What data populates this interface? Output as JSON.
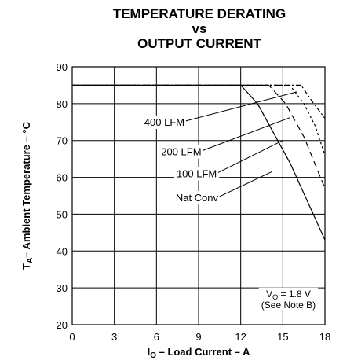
{
  "chart_data": {
    "type": "line",
    "title_lines": [
      "TEMPERATURE DERATING",
      "vs",
      "OUTPUT CURRENT"
    ],
    "xlabel_main": "I",
    "xlabel_sub": "O",
    "xlabel_rest": " – Load Current – A",
    "ylabel_main": "T",
    "ylabel_sub": "A",
    "ylabel_rest": "– Ambient Temperature – °C",
    "xlim": [
      0,
      18
    ],
    "ylim": [
      20,
      90
    ],
    "xticks": [
      0,
      3,
      6,
      9,
      12,
      15,
      18
    ],
    "yticks": [
      20,
      30,
      40,
      50,
      60,
      70,
      80,
      90
    ],
    "grid": true,
    "series": [
      {
        "name": "400 LFM",
        "dash": "2,3,6,3",
        "points": [
          [
            0,
            85
          ],
          [
            16.3,
            85
          ],
          [
            17.2,
            80
          ],
          [
            18,
            76
          ]
        ]
      },
      {
        "name": "200 LFM",
        "dash": "3,3",
        "points": [
          [
            0,
            85
          ],
          [
            15.5,
            85
          ],
          [
            16.5,
            80
          ],
          [
            17.3,
            74
          ],
          [
            18,
            66
          ]
        ]
      },
      {
        "name": "100 LFM",
        "dash": "8,5",
        "points": [
          [
            0,
            85
          ],
          [
            14.0,
            85
          ],
          [
            15.2,
            80
          ],
          [
            16.5,
            71
          ],
          [
            18,
            57
          ]
        ]
      },
      {
        "name": "Nat Conv",
        "dash": "",
        "points": [
          [
            0,
            85
          ],
          [
            12.0,
            85
          ],
          [
            13.2,
            80
          ],
          [
            15.5,
            64
          ],
          [
            18,
            43
          ]
        ]
      }
    ],
    "annotations": [
      {
        "text": "400 LFM",
        "x": 8.0,
        "y": 74,
        "anchor": "end",
        "lx1": 8.1,
        "ly1": 75.3,
        "lx2": 16.0,
        "ly2": 83.2
      },
      {
        "text": "200 LFM",
        "x": 9.2,
        "y": 66,
        "anchor": "end",
        "lx1": 9.3,
        "ly1": 67.3,
        "lx2": 15.5,
        "ly2": 76.2
      },
      {
        "text": "100 LFM",
        "x": 10.3,
        "y": 60,
        "anchor": "end",
        "lx1": 10.4,
        "ly1": 61.3,
        "lx2": 15.0,
        "ly2": 70.0
      },
      {
        "text": "Nat Conv",
        "x": 10.4,
        "y": 53.5,
        "anchor": "end",
        "lx1": 10.5,
        "ly1": 54.8,
        "lx2": 14.2,
        "ly2": 61.5
      }
    ],
    "note": {
      "v_main": "V",
      "v_sub": "O",
      "v_rest": " = 1.8 V",
      "line2": "(See Note B)"
    }
  }
}
